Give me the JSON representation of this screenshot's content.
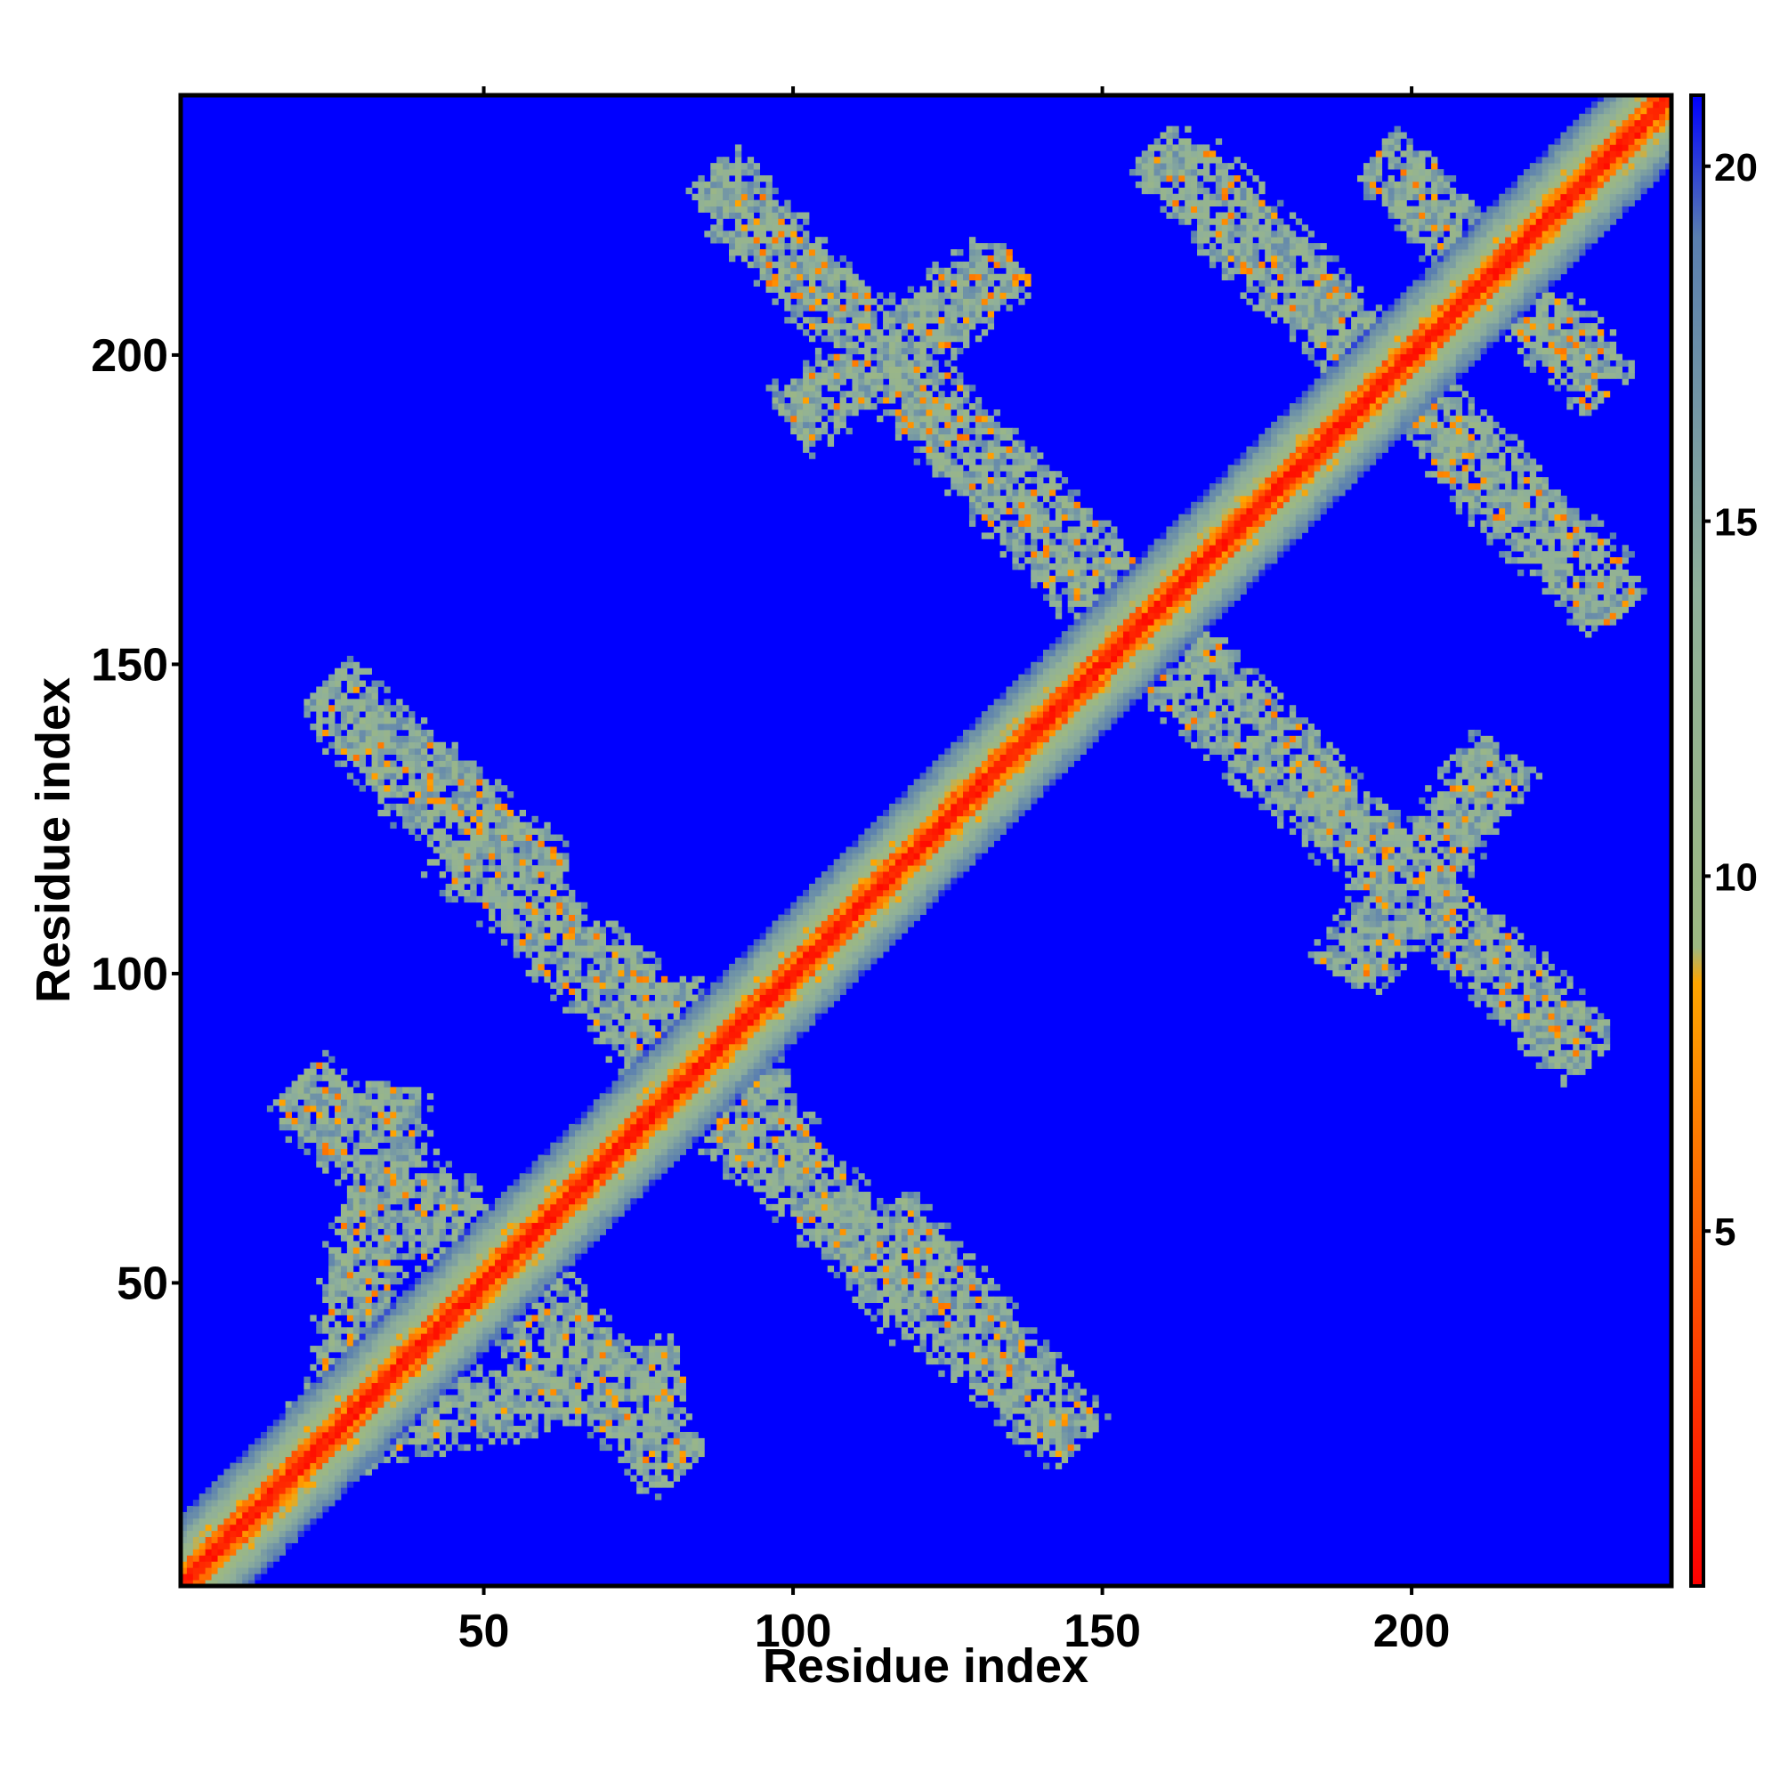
{
  "chart_data": {
    "type": "heatmap",
    "title": "",
    "xlabel": "Residue index",
    "ylabel": "Residue index",
    "xlim": [
      1,
      242
    ],
    "ylim": [
      1,
      242
    ],
    "x_ticks": [
      50,
      100,
      150,
      200
    ],
    "y_ticks": [
      50,
      100,
      150,
      200
    ],
    "x_tick_labels": [
      "50",
      "100",
      "150",
      "200"
    ],
    "y_tick_labels": [
      "50",
      "100",
      "150",
      "200"
    ],
    "colorbar": {
      "range": [
        0,
        21
      ],
      "ticks": [
        5,
        10,
        15,
        20
      ],
      "tick_labels": [
        "5",
        "10",
        "15",
        "20"
      ],
      "stops": [
        {
          "value": 0,
          "color": "#ff0000"
        },
        {
          "value": 5,
          "color": "#ff6000"
        },
        {
          "value": 8.5,
          "color": "#ffa500"
        },
        {
          "value": 9,
          "color": "#9db882"
        },
        {
          "value": 14,
          "color": "#8fb09a"
        },
        {
          "value": 19,
          "color": "#5a7fb0"
        },
        {
          "value": 21,
          "color": "#0000ff"
        }
      ]
    },
    "background_color": "#0000ff",
    "contact_bands": [
      {
        "name": "diagonal",
        "x": [
          1,
          242
        ],
        "y": [
          1,
          242
        ]
      },
      {
        "x": [
          20,
          42
        ],
        "y": [
          82,
          60
        ]
      },
      {
        "x": [
          20,
          80
        ],
        "y": [
          25,
          35
        ]
      },
      {
        "x": [
          25,
          60
        ],
        "y": [
          145,
          115
        ]
      },
      {
        "x": [
          45,
          95
        ],
        "y": [
          120,
          80
        ]
      },
      {
        "x": [
          20,
          45
        ],
        "y": [
          82,
          55
        ]
      },
      {
        "x": [
          55,
          80
        ],
        "y": [
          52,
          20
        ]
      },
      {
        "x": [
          85,
          145
        ],
        "y": [
          80,
          25
        ]
      },
      {
        "x": [
          88,
          155
        ],
        "y": [
          228,
          155
        ]
      },
      {
        "x": [
          160,
          225
        ],
        "y": [
          155,
          90
        ]
      },
      {
        "x": [
          160,
          230
        ],
        "y": [
          232,
          165
        ]
      },
      {
        "x": [
          100,
          135
        ],
        "y": [
          190,
          215
        ]
      },
      {
        "x": [
          195,
          228
        ],
        "y": [
          232,
          200
        ]
      }
    ]
  }
}
